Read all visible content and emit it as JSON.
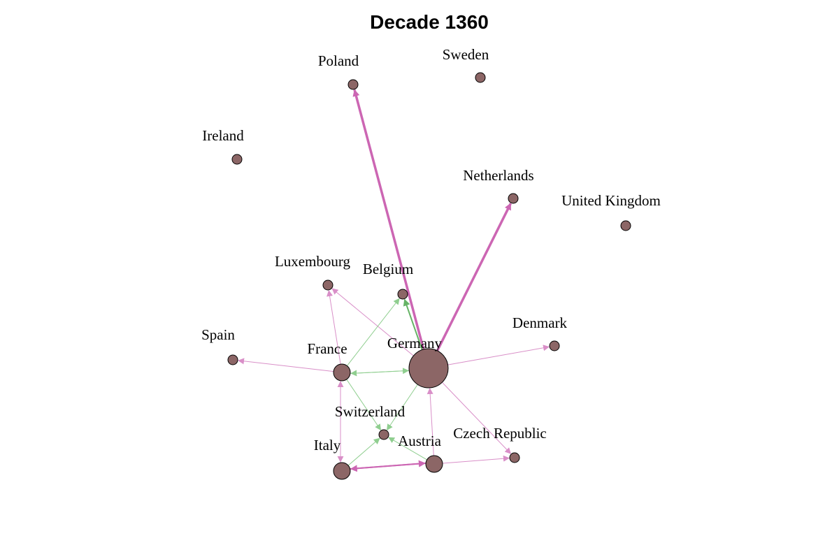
{
  "title": "Decade 1360",
  "colors": {
    "node_fill": "#8c6666",
    "edge_pink": "#d98fc8",
    "edge_pink_strong": "#cc66b3",
    "edge_green": "#8fce8f",
    "edge_green_strong": "#66b366"
  },
  "nodes": [
    {
      "id": "germany",
      "label": "Germany"
    },
    {
      "id": "poland",
      "label": "Poland"
    },
    {
      "id": "sweden",
      "label": "Sweden"
    },
    {
      "id": "ireland",
      "label": "Ireland"
    },
    {
      "id": "netherlands",
      "label": "Netherlands"
    },
    {
      "id": "uk",
      "label": "United Kingdom"
    },
    {
      "id": "luxembourg",
      "label": "Luxembourg"
    },
    {
      "id": "belgium",
      "label": "Belgium"
    },
    {
      "id": "denmark",
      "label": "Denmark"
    },
    {
      "id": "spain",
      "label": "Spain"
    },
    {
      "id": "france",
      "label": "France"
    },
    {
      "id": "switzerland",
      "label": "Switzerland"
    },
    {
      "id": "austria",
      "label": "Austria"
    },
    {
      "id": "czech",
      "label": "Czech Republic"
    },
    {
      "id": "italy",
      "label": "Italy"
    }
  ],
  "edges": [
    {
      "from": "germany",
      "to": "poland",
      "color": "pink",
      "weight": "heavy"
    },
    {
      "from": "germany",
      "to": "netherlands",
      "color": "pink",
      "weight": "heavy"
    },
    {
      "from": "germany",
      "to": "belgium",
      "color": "green",
      "weight": "medium"
    },
    {
      "from": "germany",
      "to": "luxembourg",
      "color": "pink",
      "weight": "light"
    },
    {
      "from": "germany",
      "to": "denmark",
      "color": "pink",
      "weight": "light"
    },
    {
      "from": "germany",
      "to": "france",
      "color": "green",
      "weight": "light"
    },
    {
      "from": "france",
      "to": "germany",
      "color": "green",
      "weight": "light"
    },
    {
      "from": "germany",
      "to": "czech",
      "color": "pink",
      "weight": "light"
    },
    {
      "from": "germany",
      "to": "switzerland",
      "color": "green",
      "weight": "light"
    },
    {
      "from": "france",
      "to": "spain",
      "color": "pink",
      "weight": "light"
    },
    {
      "from": "france",
      "to": "luxembourg",
      "color": "pink",
      "weight": "light"
    },
    {
      "from": "france",
      "to": "belgium",
      "color": "green",
      "weight": "light"
    },
    {
      "from": "france",
      "to": "switzerland",
      "color": "green",
      "weight": "light"
    },
    {
      "from": "france",
      "to": "italy",
      "color": "pink",
      "weight": "light"
    },
    {
      "from": "italy",
      "to": "france",
      "color": "pink",
      "weight": "light"
    },
    {
      "from": "italy",
      "to": "austria",
      "color": "pink",
      "weight": "medium"
    },
    {
      "from": "austria",
      "to": "italy",
      "color": "pink",
      "weight": "medium"
    },
    {
      "from": "italy",
      "to": "switzerland",
      "color": "green",
      "weight": "light"
    },
    {
      "from": "austria",
      "to": "switzerland",
      "color": "green",
      "weight": "light"
    },
    {
      "from": "austria",
      "to": "germany",
      "color": "pink",
      "weight": "light"
    },
    {
      "from": "austria",
      "to": "czech",
      "color": "pink",
      "weight": "light"
    }
  ]
}
